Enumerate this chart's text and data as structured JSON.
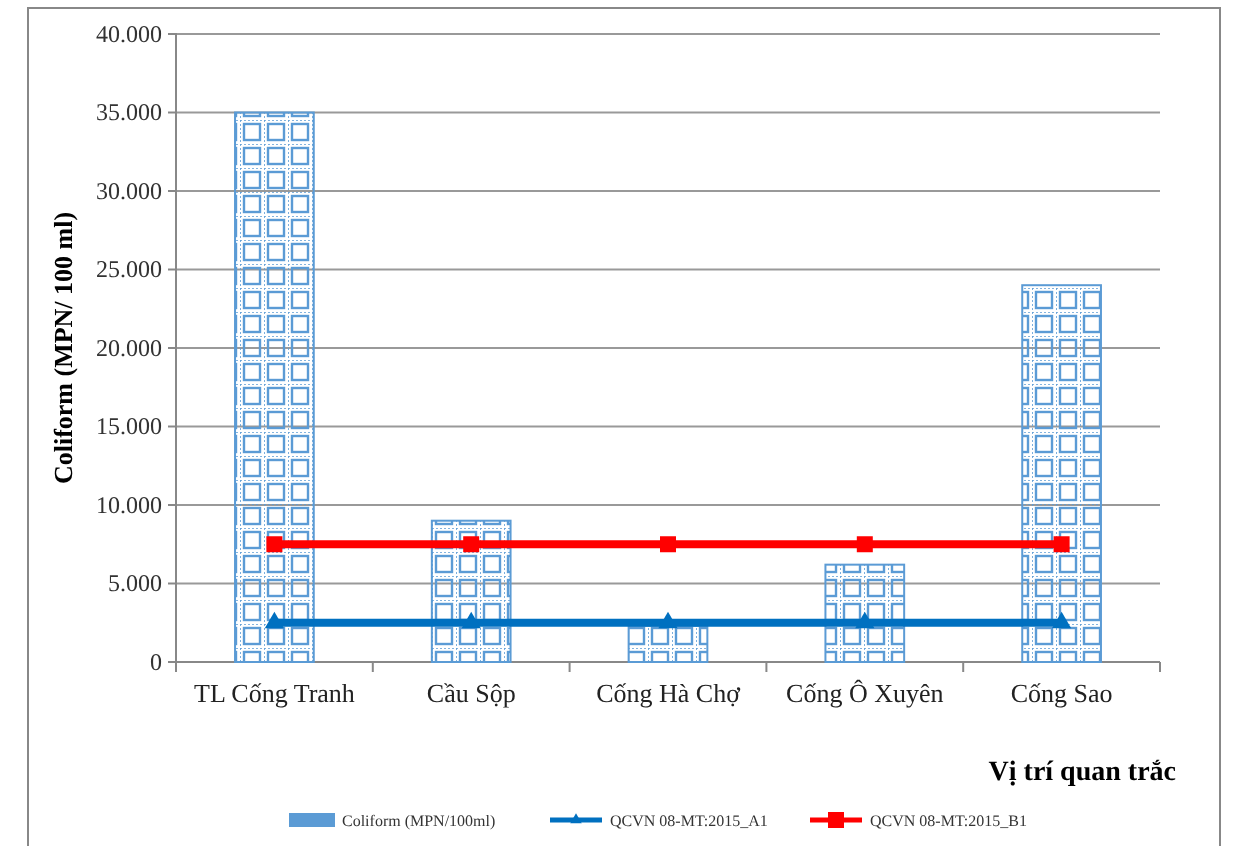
{
  "chart_data": {
    "type": "bar",
    "xlabel": "Vị trí quan trắc",
    "ylabel": "Coliform (MPN/ 100 ml)",
    "categories": [
      "TL  Cống Tranh",
      "Cầu Sộp",
      "Cống Hà Chợ",
      "Cống Ô Xuyên",
      "Cống Sao"
    ],
    "series": [
      {
        "name": "Coliform (MPN/100ml)",
        "color": "#5b9bd5",
        "values": [
          35000,
          9000,
          2300,
          6200,
          24000
        ]
      },
      {
        "name": "QCVN 08-MT:2015_A1",
        "type": "line",
        "color": "#0070c0",
        "marker": "triangle",
        "values": [
          2500,
          2500,
          2500,
          2500,
          2500
        ]
      },
      {
        "name": "QCVN 08-MT:2015_B1",
        "type": "line",
        "color": "#ff0000",
        "marker": "square",
        "values": [
          7500,
          7500,
          7500,
          7500,
          7500
        ]
      }
    ],
    "ylim": [
      0,
      40000
    ],
    "yticks": [
      {
        "value": 0,
        "label": "0"
      },
      {
        "value": 5000,
        "label": "5.000"
      },
      {
        "value": 10000,
        "label": "10.000"
      },
      {
        "value": 15000,
        "label": "15.000"
      },
      {
        "value": 20000,
        "label": "20.000"
      },
      {
        "value": 25000,
        "label": "25.000"
      },
      {
        "value": 30000,
        "label": "30.000"
      },
      {
        "value": 35000,
        "label": "35.000"
      },
      {
        "value": 40000,
        "label": "40.000"
      }
    ],
    "grid": "y",
    "legend": "bottom"
  }
}
